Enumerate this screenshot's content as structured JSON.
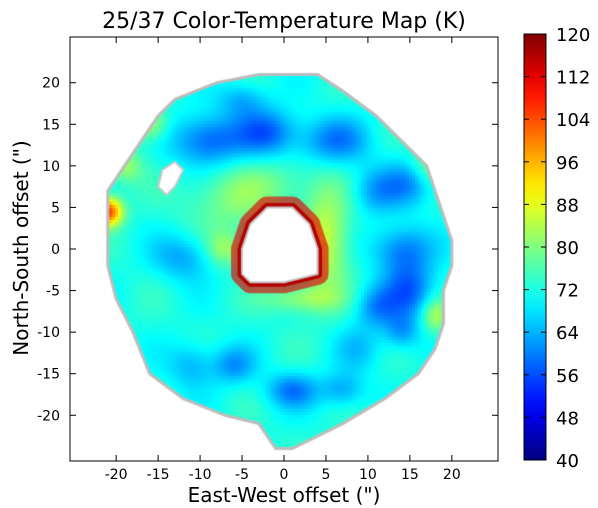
{
  "chart_data": {
    "type": "heatmap",
    "title": "25/37 Color-Temperature Map (K)",
    "xlabel": "East-West offset (\")",
    "ylabel": "North-South offset (\")",
    "xlim": [
      -25.5,
      25.5
    ],
    "ylim": [
      25.5,
      -25.5
    ],
    "x_ticks": [
      -20,
      -15,
      -10,
      -5,
      0,
      5,
      10,
      15,
      20
    ],
    "y_ticks": [
      -20,
      -15,
      -10,
      -5,
      0,
      5,
      10,
      15,
      20
    ],
    "colorbar": {
      "colormap": "jet",
      "range": [
        40,
        120
      ],
      "ticks": [
        40,
        48,
        56,
        64,
        72,
        80,
        88,
        96,
        104,
        112,
        120
      ]
    },
    "background_level_K": 72,
    "outer_boundary": [
      [
        -1,
        -24
      ],
      [
        1,
        -24
      ],
      [
        7,
        -21
      ],
      [
        12,
        -18
      ],
      [
        16,
        -15
      ],
      [
        18,
        -12
      ],
      [
        19,
        -9
      ],
      [
        19,
        -5
      ],
      [
        20,
        -2
      ],
      [
        20,
        1
      ],
      [
        19,
        4
      ],
      [
        18,
        7
      ],
      [
        17,
        10
      ],
      [
        14,
        13
      ],
      [
        11,
        16
      ],
      [
        7,
        19
      ],
      [
        4,
        21
      ],
      [
        -3,
        21
      ],
      [
        -8,
        20
      ],
      [
        -13,
        18
      ],
      [
        -15,
        16
      ],
      [
        -17,
        13
      ],
      [
        -19,
        10
      ],
      [
        -21,
        7
      ],
      [
        -21,
        2
      ],
      [
        -21,
        -2
      ],
      [
        -20,
        -6
      ],
      [
        -18,
        -10
      ],
      [
        -16,
        -15
      ],
      [
        -12,
        -18
      ],
      [
        -7,
        -20
      ],
      [
        -3,
        -21
      ]
    ],
    "inner_hole": [
      [
        -4,
        -4
      ],
      [
        0,
        -4
      ],
      [
        4,
        -3
      ],
      [
        4,
        0
      ],
      [
        3,
        3
      ],
      [
        1,
        5
      ],
      [
        -2,
        5
      ],
      [
        -4,
        3
      ],
      [
        -5,
        0
      ],
      [
        -5,
        -3
      ]
    ],
    "hot_ring_K": 112,
    "secondary_hole": [
      [
        -15,
        7.5
      ],
      [
        -14,
        6.5
      ],
      [
        -13,
        7.5
      ],
      [
        -12,
        9.5
      ],
      [
        -13,
        10.5
      ],
      [
        -14.5,
        9.5
      ]
    ],
    "anomalies_K": [
      {
        "x": 1,
        "y": -17,
        "sx": 2.2,
        "sy": 1.5,
        "value": 60
      },
      {
        "x": 7,
        "y": -17,
        "sx": 1.8,
        "sy": 1.5,
        "value": 63
      },
      {
        "x": -11,
        "y": -14,
        "sx": 2,
        "sy": 2,
        "value": 64
      },
      {
        "x": -6,
        "y": -14,
        "sx": 1.8,
        "sy": 1.6,
        "value": 62
      },
      {
        "x": 14,
        "y": -10,
        "sx": 1.5,
        "sy": 1.5,
        "value": 63
      },
      {
        "x": 11,
        "y": -7,
        "sx": 1.8,
        "sy": 1.8,
        "value": 62
      },
      {
        "x": 15,
        "y": -5,
        "sx": 2.2,
        "sy": 2.5,
        "value": 58
      },
      {
        "x": -12,
        "y": -1,
        "sx": 2.5,
        "sy": 2,
        "value": 63
      },
      {
        "x": 14,
        "y": 0,
        "sx": 2.5,
        "sy": 2,
        "value": 60
      },
      {
        "x": -6,
        "y": 6,
        "sx": 4,
        "sy": 3,
        "value": 80
      },
      {
        "x": 5,
        "y": 1,
        "sx": 2,
        "sy": 4.5,
        "value": 86
      },
      {
        "x": 2,
        "y": -6,
        "sx": 3,
        "sy": 1.2,
        "value": 82
      },
      {
        "x": 0,
        "y": 8,
        "sx": 3,
        "sy": 2,
        "value": 76
      },
      {
        "x": -9,
        "y": 13,
        "sx": 3,
        "sy": 2.2,
        "value": 57
      },
      {
        "x": -2,
        "y": 14,
        "sx": 2.5,
        "sy": 2,
        "value": 58
      },
      {
        "x": 6,
        "y": 13,
        "sx": 3,
        "sy": 2,
        "value": 60
      },
      {
        "x": 11,
        "y": 7,
        "sx": 2,
        "sy": 2,
        "value": 63
      },
      {
        "x": 15,
        "y": 8,
        "sx": 2,
        "sy": 2,
        "value": 62
      },
      {
        "x": -5,
        "y": 18,
        "sx": 2,
        "sy": 1.5,
        "value": 64
      },
      {
        "x": -21,
        "y": 4.5,
        "sx": 1.2,
        "sy": 1.2,
        "value": 106
      },
      {
        "x": -16,
        "y": 15,
        "sx": 1.5,
        "sy": 1.5,
        "value": 84
      },
      {
        "x": -19,
        "y": 10,
        "sx": 1.5,
        "sy": 1.5,
        "value": 82
      },
      {
        "x": 18,
        "y": -8,
        "sx": 1.2,
        "sy": 1.5,
        "value": 84
      },
      {
        "x": 17,
        "y": 10,
        "sx": 1.5,
        "sy": 1.5,
        "value": 80
      },
      {
        "x": -7,
        "y": 0,
        "sx": 1.5,
        "sy": 1.5,
        "value": 82
      },
      {
        "x": 9,
        "y": -12,
        "sx": 2,
        "sy": 2,
        "value": 66
      }
    ]
  }
}
